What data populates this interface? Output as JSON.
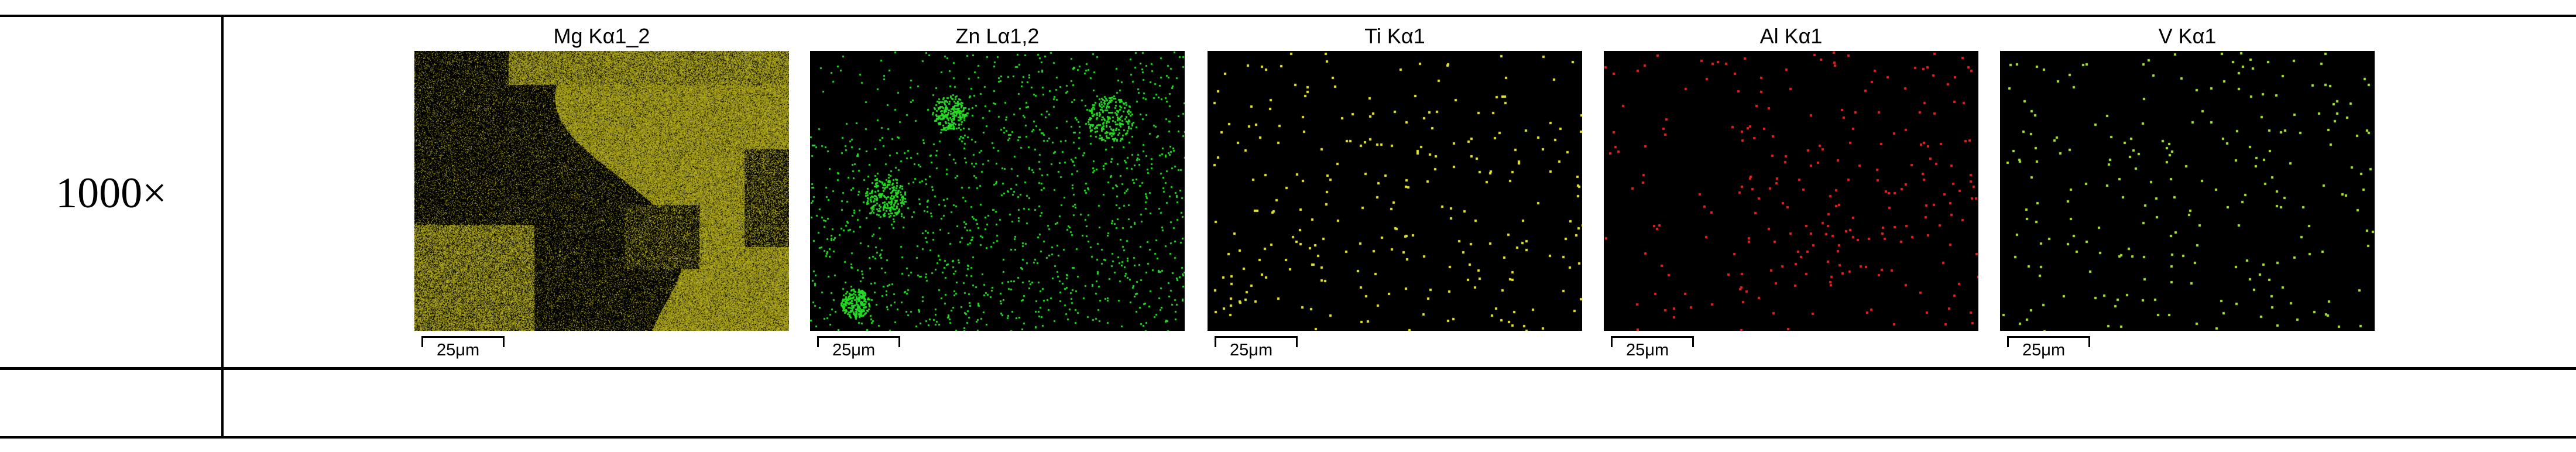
{
  "table": {
    "rows": [
      {
        "label": "1000×"
      },
      {
        "label": ""
      }
    ]
  },
  "panels": [
    {
      "title": "Mg Kα1_2",
      "color": "#c8c01e",
      "scale_label": "25μm"
    },
    {
      "title": "Zn Lα1,2",
      "color": "#22dd22",
      "scale_label": "25μm"
    },
    {
      "title": "Ti Kα1",
      "color": "#e6e628",
      "scale_label": "25μm"
    },
    {
      "title": "Al Kα1",
      "color": "#ee1e1e",
      "scale_label": "25μm"
    },
    {
      "title": "V Kα1",
      "color": "#a6e630",
      "scale_label": "25μm"
    }
  ]
}
